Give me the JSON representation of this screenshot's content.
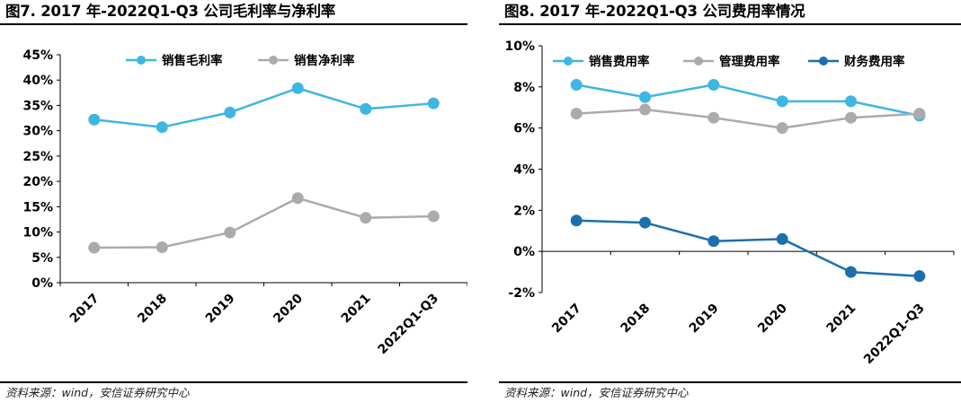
{
  "charts": [
    {
      "title": "图7. 2017 年-2022Q1-Q3 公司毛利率与净利率",
      "source": "资料来源：wind，安信证券研究中心",
      "chart_data": {
        "type": "line",
        "categories": [
          "2017",
          "2018",
          "2019",
          "2020",
          "2021",
          "2022Q1-Q3"
        ],
        "series": [
          {
            "name": "销售毛利率",
            "color": "#3EB6E4",
            "values": [
              32.2,
              30.7,
              33.6,
              38.4,
              34.3,
              35.4
            ]
          },
          {
            "name": "销售净利率",
            "color": "#ABABAB",
            "values": [
              6.9,
              7.0,
              9.9,
              16.7,
              12.8,
              13.1
            ]
          }
        ],
        "yticks": [
          "0%",
          "5%",
          "10%",
          "15%",
          "20%",
          "25%",
          "30%",
          "35%",
          "40%",
          "45%"
        ],
        "ylim": [
          0,
          45
        ],
        "xlabel": "",
        "ylabel": "",
        "legend_position": "top-center",
        "grid": false
      }
    },
    {
      "title": "图8. 2017 年-2022Q1-Q3 公司费用率情况",
      "source": "资料来源：wind，安信证券研究中心",
      "chart_data": {
        "type": "line",
        "categories": [
          "2017",
          "2018",
          "2019",
          "2020",
          "2021",
          "2022Q1-Q3"
        ],
        "series": [
          {
            "name": "销售费用率",
            "color": "#3EB6E4",
            "values": [
              8.1,
              7.5,
              8.1,
              7.3,
              7.3,
              6.6
            ]
          },
          {
            "name": "管理费用率",
            "color": "#ABABAB",
            "values": [
              6.7,
              6.9,
              6.5,
              6.0,
              6.5,
              6.7
            ]
          },
          {
            "name": "财务费用率",
            "color": "#1B6FAE",
            "values": [
              1.5,
              1.4,
              0.5,
              0.6,
              -1.0,
              -1.2
            ]
          }
        ],
        "yticks": [
          "-2%",
          "0%",
          "2%",
          "4%",
          "6%",
          "8%",
          "10%"
        ],
        "ylim": [
          -2,
          10
        ],
        "xlabel": "",
        "ylabel": "",
        "legend_position": "top",
        "grid": false
      }
    }
  ]
}
